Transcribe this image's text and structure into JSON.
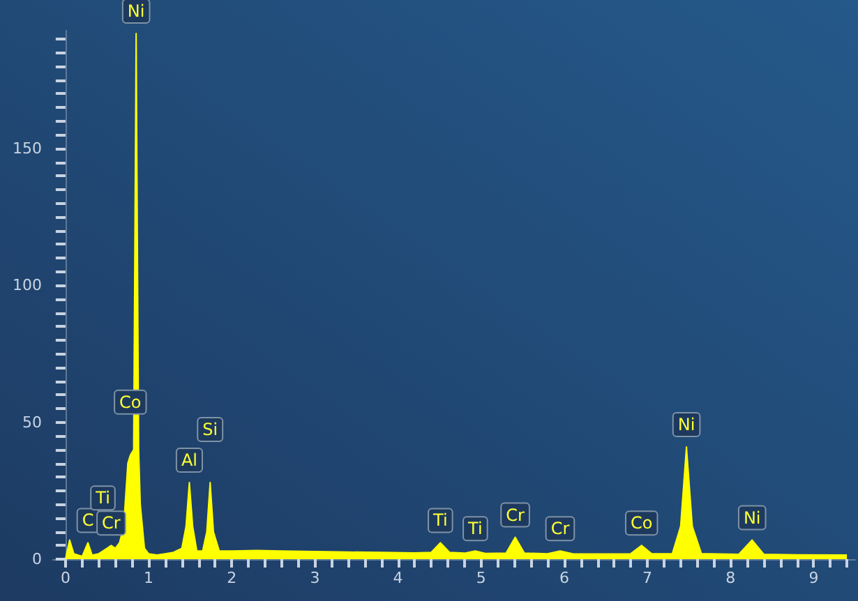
{
  "chart_data": {
    "type": "area",
    "marker": "none",
    "grid": false,
    "xlim": [
      -0.15,
      9.5
    ],
    "ylim": [
      0,
      193
    ],
    "xticks": [
      0,
      {
        "value": 0.2,
        "label": null
      },
      {
        "value": 0.4,
        "label": null
      },
      {
        "value": 0.6,
        "label": null
      },
      {
        "value": 0.8,
        "label": null
      },
      1,
      {
        "value": 1.2,
        "label": null
      },
      {
        "value": 1.4,
        "label": null
      },
      {
        "value": 1.6,
        "label": null
      },
      {
        "value": 1.8,
        "label": null
      },
      2,
      {
        "value": 2.2,
        "label": null
      },
      {
        "value": 2.4,
        "label": null
      },
      {
        "value": 2.6,
        "label": null
      },
      {
        "value": 2.8,
        "label": null
      },
      3,
      {
        "value": 3.2,
        "label": null
      },
      {
        "value": 3.4,
        "label": null
      },
      {
        "value": 3.6,
        "label": null
      },
      {
        "value": 3.8,
        "label": null
      },
      4,
      {
        "value": 4.2,
        "label": null
      },
      {
        "value": 4.4,
        "label": null
      },
      {
        "value": 4.6,
        "label": null
      },
      {
        "value": 4.8,
        "label": null
      },
      5,
      {
        "value": 5.2,
        "label": null
      },
      {
        "value": 5.4,
        "label": null
      },
      {
        "value": 5.6,
        "label": null
      },
      {
        "value": 5.8,
        "label": null
      },
      6,
      {
        "value": 6.2,
        "label": null
      },
      {
        "value": 6.4,
        "label": null
      },
      {
        "value": 6.6,
        "label": null
      },
      {
        "value": 6.8,
        "label": null
      },
      7,
      {
        "value": 7.2,
        "label": null
      },
      {
        "value": 7.4,
        "label": null
      },
      {
        "value": 7.6,
        "label": null
      },
      {
        "value": 7.8,
        "label": null
      },
      8,
      {
        "value": 8.2,
        "label": null
      },
      {
        "value": 8.4,
        "label": null
      },
      {
        "value": 8.6,
        "label": null
      },
      {
        "value": 8.8,
        "label": null
      },
      9,
      {
        "value": 9.2,
        "label": null
      },
      {
        "value": 9.4,
        "label": null
      }
    ],
    "yticks": [
      0,
      {
        "value": 5,
        "label": null
      },
      {
        "value": 10,
        "label": null
      },
      {
        "value": 15,
        "label": null
      },
      {
        "value": 20,
        "label": null
      },
      {
        "value": 25,
        "label": null
      },
      {
        "value": 30,
        "label": null
      },
      {
        "value": 35,
        "label": null
      },
      {
        "value": 40,
        "label": null
      },
      {
        "value": 45,
        "label": null
      },
      50,
      {
        "value": 55,
        "label": null
      },
      {
        "value": 60,
        "label": null
      },
      {
        "value": 65,
        "label": null
      },
      {
        "value": 70,
        "label": null
      },
      {
        "value": 75,
        "label": null
      },
      {
        "value": 80,
        "label": null
      },
      {
        "value": 85,
        "label": null
      },
      {
        "value": 90,
        "label": null
      },
      {
        "value": 95,
        "label": null
      },
      100,
      {
        "value": 105,
        "label": null
      },
      {
        "value": 110,
        "label": null
      },
      {
        "value": 115,
        "label": null
      },
      {
        "value": 120,
        "label": null
      },
      {
        "value": 125,
        "label": null
      },
      {
        "value": 130,
        "label": null
      },
      {
        "value": 135,
        "label": null
      },
      {
        "value": 140,
        "label": null
      },
      {
        "value": 145,
        "label": null
      },
      150,
      {
        "value": 155,
        "label": null
      },
      {
        "value": 160,
        "label": null
      },
      {
        "value": 165,
        "label": null
      },
      {
        "value": 170,
        "label": null
      },
      {
        "value": 175,
        "label": null
      },
      {
        "value": 180,
        "label": null
      },
      {
        "value": 185,
        "label": null
      },
      {
        "value": 190,
        "label": null
      }
    ],
    "series": [
      {
        "color": "#ffff00",
        "x": [
          0,
          0.05,
          0.1,
          0.2,
          0.27,
          0.32,
          0.4,
          0.45,
          0.5,
          0.55,
          0.6,
          0.65,
          0.7,
          0.75,
          0.78,
          0.82,
          0.85,
          0.88,
          0.9,
          0.95,
          1.0,
          1.1,
          1.2,
          1.3,
          1.4,
          1.45,
          1.49,
          1.53,
          1.58,
          1.65,
          1.7,
          1.74,
          1.78,
          1.85,
          2.0,
          2.3,
          2.6,
          3.0,
          3.4,
          3.8,
          4.2,
          4.4,
          4.51,
          4.62,
          4.8,
          4.93,
          5.05,
          5.3,
          5.41,
          5.52,
          5.8,
          5.95,
          6.1,
          6.5,
          6.8,
          6.93,
          7.05,
          7.3,
          7.4,
          7.47,
          7.54,
          7.65,
          8.1,
          8.26,
          8.4,
          8.8,
          9.4
        ],
        "values": [
          0,
          7,
          2,
          1,
          6,
          1.5,
          2,
          3,
          4,
          5,
          4,
          6,
          12,
          35,
          38,
          40,
          192,
          40,
          20,
          4,
          2,
          1.5,
          2,
          2.5,
          4,
          12,
          28,
          12,
          3,
          3,
          10,
          28,
          10,
          3,
          3,
          3.2,
          3,
          2.8,
          2.6,
          2.5,
          2.3,
          2.5,
          6,
          2.5,
          2.2,
          3,
          2.1,
          2.2,
          8,
          2.2,
          2,
          3,
          2,
          1.9,
          2,
          5,
          2,
          2,
          12,
          41,
          12,
          2,
          1.8,
          7,
          1.8,
          1.6,
          1.5
        ]
      }
    ],
    "annotations": [
      {
        "text": "C",
        "x": 0.27,
        "y": 6
      },
      {
        "text": "Ti",
        "x": 0.45,
        "y": 3
      },
      {
        "text": "Cr",
        "x": 0.55,
        "y": 5
      },
      {
        "text": "Co",
        "x": 0.78,
        "y": 38
      },
      {
        "text": "Ni",
        "x": 0.85,
        "y": 192
      },
      {
        "text": "Al",
        "x": 1.49,
        "y": 28
      },
      {
        "text": "Si",
        "x": 1.74,
        "y": 28
      },
      {
        "text": "Ti",
        "x": 4.51,
        "y": 6
      },
      {
        "text": "Ti",
        "x": 4.93,
        "y": 3
      },
      {
        "text": "Cr",
        "x": 5.41,
        "y": 8
      },
      {
        "text": "Cr",
        "x": 5.95,
        "y": 3
      },
      {
        "text": "Co",
        "x": 6.93,
        "y": 5
      },
      {
        "text": "Ni",
        "x": 7.47,
        "y": 41
      },
      {
        "text": "Ni",
        "x": 8.26,
        "y": 7
      }
    ]
  }
}
